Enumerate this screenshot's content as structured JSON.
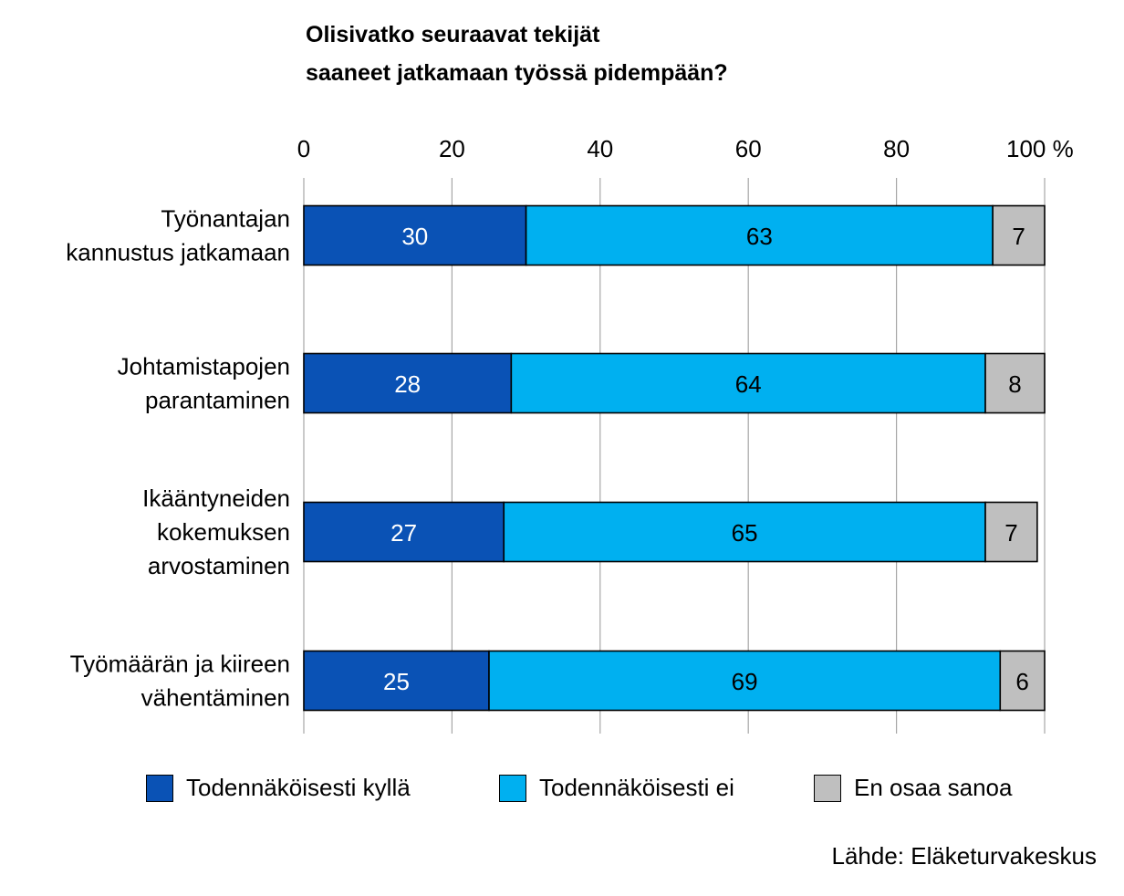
{
  "chart_data": {
    "type": "bar",
    "orientation": "horizontal",
    "stacked": true,
    "title": [
      "Olisivatko seuraavat tekijät",
      "saaneet jatkamaan työssä pidempään?"
    ],
    "categories": [
      [
        "Työnantajan",
        "kannustus jatkamaan"
      ],
      [
        "Johtamistapojen",
        "parantaminen"
      ],
      [
        "Ikääntyneiden",
        "kokemuksen",
        "arvostaminen"
      ],
      [
        "Työmäärän ja kiireen",
        "vähentäminen"
      ]
    ],
    "series": [
      {
        "name": "Todennäköisesti kyllä",
        "color": "#0a52b5",
        "label_color": "#ffffff",
        "values": [
          30,
          28,
          27,
          25
        ]
      },
      {
        "name": "Todennäköisesti ei",
        "color": "#00b0f0",
        "label_color": "#000000",
        "values": [
          63,
          64,
          65,
          69
        ]
      },
      {
        "name": "En osaa sanoa",
        "color": "#bfbfbf",
        "label_color": "#000000",
        "values": [
          7,
          8,
          7,
          6
        ]
      }
    ],
    "xlim": [
      0,
      100
    ],
    "xticks": [
      "0",
      "20",
      "40",
      "60",
      "80",
      "100 %"
    ],
    "xaxis_position": "top",
    "grid": true,
    "legend_position": "bottom"
  },
  "source": "Lähde: Eläketurvakeskus"
}
